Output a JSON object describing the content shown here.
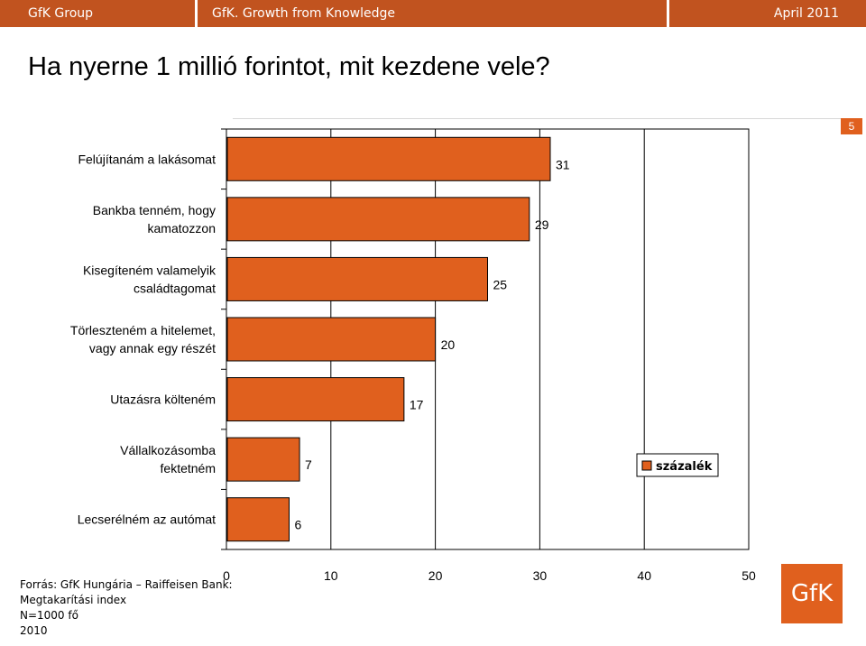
{
  "header": {
    "left": "GfK Group",
    "center": "GfK. Growth from Knowledge",
    "right": "April 2011"
  },
  "title": "Ha nyerne 1 millió forintot, mit kezdene vele?",
  "page_number": "5",
  "source": {
    "line1": "Forrás: GfK Hungária – Raiffeisen Bank:",
    "line2": "Megtakarítási index",
    "line3": "N=1000 fő",
    "line4": "2010"
  },
  "logo": "GfK",
  "colors": {
    "bar": "#e0601e",
    "header": "#c1531f"
  },
  "chart_data": {
    "type": "bar",
    "orientation": "horizontal",
    "categories": [
      "Felújítanám a lakásomat",
      "Bankba tenném, hogy kamatozzon",
      "Kisegíteném valamelyik családtagomat",
      "Törleszteném a hitelemet, vagy annak egy részét",
      "Utazásra költeném",
      "Vállalkozásomba fektetném",
      "Lecserélném az autómat"
    ],
    "series": [
      {
        "name": "százalék",
        "values": [
          31,
          29,
          25,
          20,
          17,
          7,
          6
        ]
      }
    ],
    "xlim": [
      0,
      50
    ],
    "xticks": [
      0,
      10,
      20,
      30,
      40,
      50
    ],
    "legend": "right",
    "grid": true
  }
}
